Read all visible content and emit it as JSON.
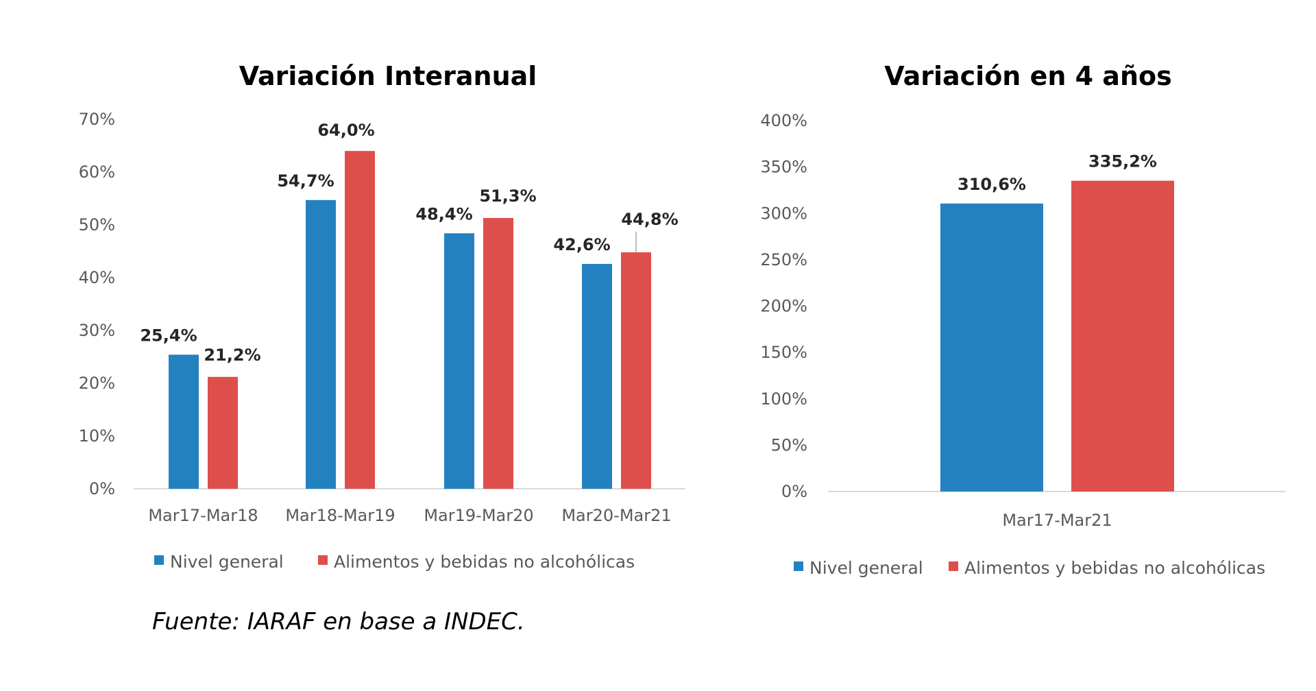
{
  "colors": {
    "nivel": "#2481c0",
    "alimentos": "#de4f4c",
    "axis": "#d9d9d9"
  },
  "source": "Fuente: IARAF en base a INDEC.",
  "chart_data": [
    {
      "type": "bar",
      "title": "Variación Interanual",
      "xlabel": "",
      "ylabel": "",
      "ylim": [
        0,
        70
      ],
      "yticks": [
        0,
        10,
        20,
        30,
        40,
        50,
        60,
        70
      ],
      "ytick_labels": [
        "0%",
        "10%",
        "20%",
        "30%",
        "40%",
        "50%",
        "60%",
        "70%"
      ],
      "categories": [
        "Mar17-Mar18",
        "Mar18-Mar19",
        "Mar19-Mar20",
        "Mar20-Mar21"
      ],
      "series": [
        {
          "name": "Nivel general",
          "values": [
            25.4,
            54.7,
            48.4,
            42.6
          ],
          "labels": [
            "25,4%",
            "54,7%",
            "48,4%",
            "42,6%"
          ]
        },
        {
          "name": "Alimentos y bebidas no alcohólicas",
          "values": [
            21.2,
            64.0,
            51.3,
            44.8
          ],
          "labels": [
            "21,2%",
            "64,0%",
            "51,3%",
            "44,8%"
          ]
        }
      ],
      "legend": "bottom",
      "grid": false
    },
    {
      "type": "bar",
      "title": "Variación en 4 años",
      "xlabel": "",
      "ylabel": "",
      "ylim": [
        0,
        400
      ],
      "yticks": [
        0,
        50,
        100,
        150,
        200,
        250,
        300,
        350,
        400
      ],
      "ytick_labels": [
        "0%",
        "50%",
        "100%",
        "150%",
        "200%",
        "250%",
        "300%",
        "350%",
        "400%"
      ],
      "categories": [
        "Mar17-Mar21"
      ],
      "series": [
        {
          "name": "Nivel general",
          "values": [
            310.6
          ],
          "labels": [
            "310,6%"
          ]
        },
        {
          "name": "Alimentos y bebidas no alcohólicas",
          "values": [
            335.2
          ],
          "labels": [
            "335,2%"
          ]
        }
      ],
      "legend": "bottom",
      "grid": false
    }
  ]
}
